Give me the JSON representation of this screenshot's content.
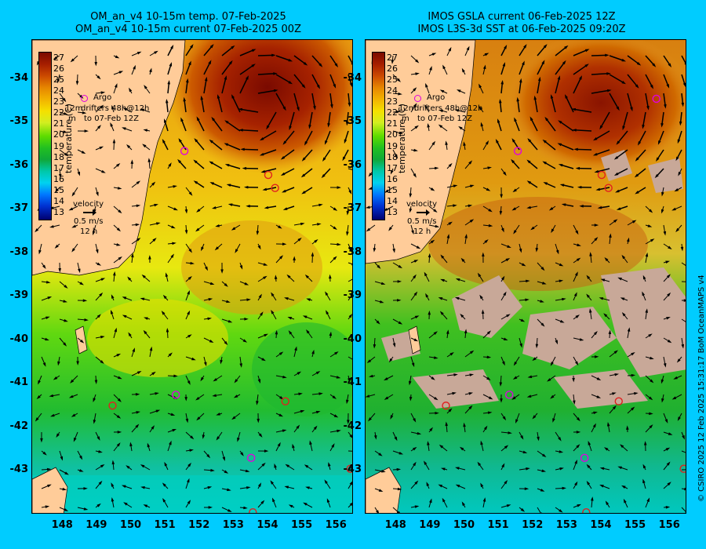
{
  "left_panel": {
    "title_line1": "OM_an_v4  10-15m temp. 07-Feb-2025",
    "title_line2": "OM_an_v4  10-15m current 07-Feb-2025 00Z"
  },
  "right_panel": {
    "title_line1": "IMOS GSLA current 06-Feb-2025 12Z",
    "title_line2": "IMOS L3S-3d SST at 06-Feb-2025 09:20Z"
  },
  "axes": {
    "y_ticks": [
      "-34",
      "-35",
      "-36",
      "-37",
      "-38",
      "-39",
      "-40",
      "-41",
      "-42",
      "-43"
    ],
    "x_ticks": [
      "148",
      "149",
      "150",
      "151",
      "152",
      "153",
      "154",
      "155",
      "156"
    ]
  },
  "colorbar": {
    "label": "temperature (C)",
    "ticks": [
      "27",
      "26",
      "25",
      "24",
      "23",
      "22",
      "21",
      "20",
      "19",
      "18",
      "17",
      "16",
      "15",
      "14",
      "13"
    ],
    "range": [
      13,
      27
    ]
  },
  "legend": {
    "argo": "Argo",
    "drifters_prefix": "12m",
    "drifters_line1": "drifters 48h@12h",
    "drifters_line2": "to 07-Feb 12Z",
    "drifters_m": "m",
    "velocity_title": "velocity",
    "velocity_scale": "0.5 m/s",
    "velocity_time": "12 h"
  },
  "argo_floats": {
    "left": [
      [
        151.55,
        -35.65
      ],
      [
        154.0,
        -36.2
      ],
      [
        154.2,
        -36.5
      ],
      [
        151.3,
        -41.25
      ],
      [
        149.45,
        -41.5
      ],
      [
        154.5,
        -41.4
      ],
      [
        153.5,
        -42.7
      ],
      [
        156.4,
        -42.95
      ],
      [
        153.55,
        -43.95
      ]
    ],
    "right": [
      [
        151.55,
        -35.65
      ],
      [
        154.0,
        -36.2
      ],
      [
        154.2,
        -36.5
      ],
      [
        151.3,
        -41.25
      ],
      [
        149.45,
        -41.5
      ],
      [
        154.5,
        -41.4
      ],
      [
        153.5,
        -42.7
      ],
      [
        156.4,
        -42.95
      ],
      [
        153.55,
        -43.95
      ],
      [
        155.6,
        -34.45
      ]
    ]
  },
  "colors": {
    "background": "#00ccff",
    "land": "#ffcc99",
    "argo_ring": "#e000e0",
    "cloud_mask": "#c8a898"
  },
  "credit": "© CSIRO 2025  12 Feb 2025 15:31:17 BoM OceanMAPS v4"
}
